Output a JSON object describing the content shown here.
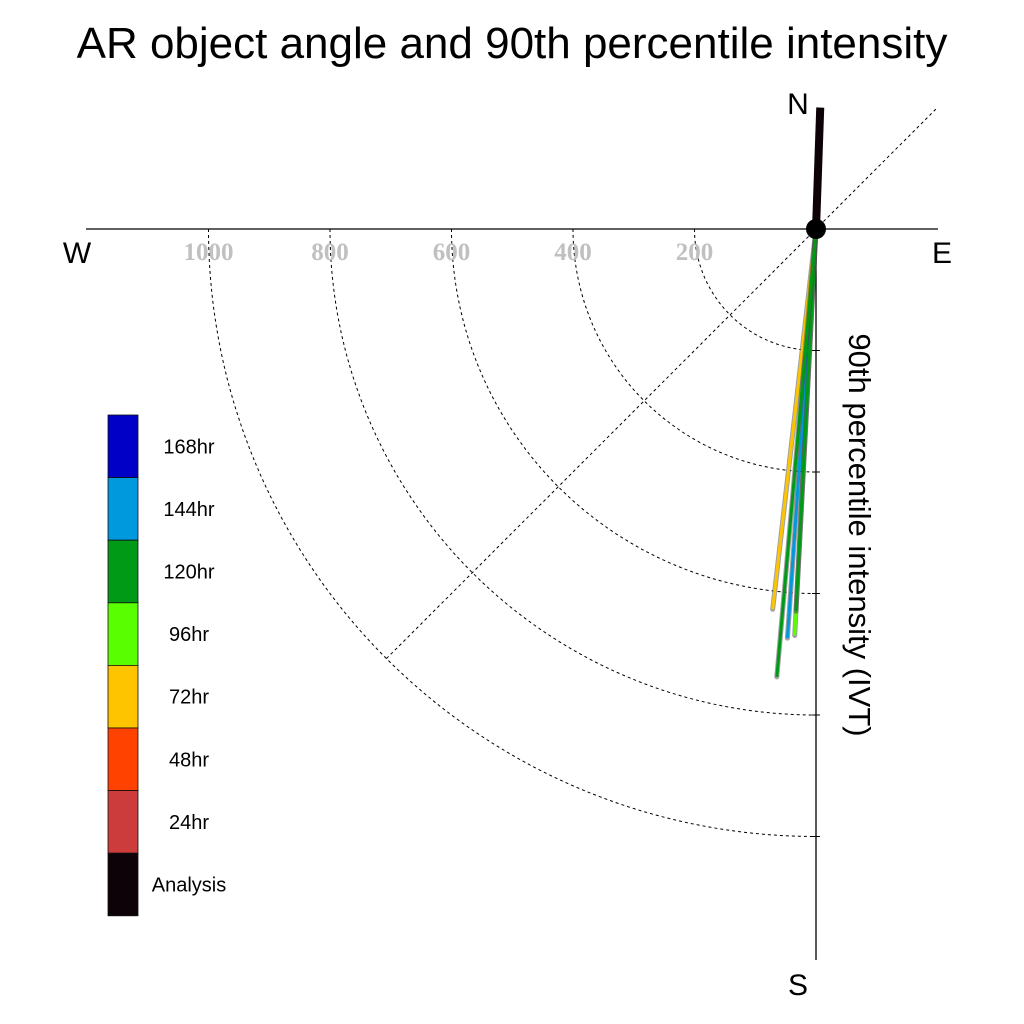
{
  "chart_data": {
    "type": "polar-line",
    "title": "AR object angle and 90th percentile intensity",
    "radial_axis_label": "90th percentile intensity (IVT)",
    "radial_ticks": [
      200,
      400,
      600,
      800,
      1000
    ],
    "compass": {
      "north": "N",
      "south": "S",
      "east": "E",
      "west": "W"
    },
    "angle_range_deg": [
      -90,
      90
    ],
    "angle_convention": "0 = South, positive toward East; 180 = North",
    "series": [
      {
        "name": "Analysis",
        "color": "#0d0208",
        "angle_deg": 178,
        "intensity": 200
      },
      {
        "name": "72hr",
        "color": "#ffc400",
        "angle_deg": -6.5,
        "intensity": 630
      },
      {
        "name": "96hr",
        "color": "#59ff00",
        "angle_deg": -3,
        "intensity": 670
      },
      {
        "name": "144hr",
        "color": "#0099dd",
        "angle_deg": -4,
        "intensity": 675
      },
      {
        "name": "120hr",
        "color": "#009a17",
        "angle_deg": -3,
        "intensity": 630
      },
      {
        "name": "120hr",
        "color": "#009a17",
        "angle_deg": -5,
        "intensity": 740
      }
    ],
    "legend": [
      {
        "label": "168hr",
        "color": "#0000c6"
      },
      {
        "label": "144hr",
        "color": "#0099dd"
      },
      {
        "label": "120hr",
        "color": "#009a17"
      },
      {
        "label": "96hr",
        "color": "#59ff00"
      },
      {
        "label": "72hr",
        "color": "#ffc400"
      },
      {
        "label": "48hr",
        "color": "#ff4200"
      },
      {
        "label": "24hr",
        "color": "#cc3c3c"
      },
      {
        "label": "Analysis",
        "color": "#0d0208"
      }
    ]
  }
}
